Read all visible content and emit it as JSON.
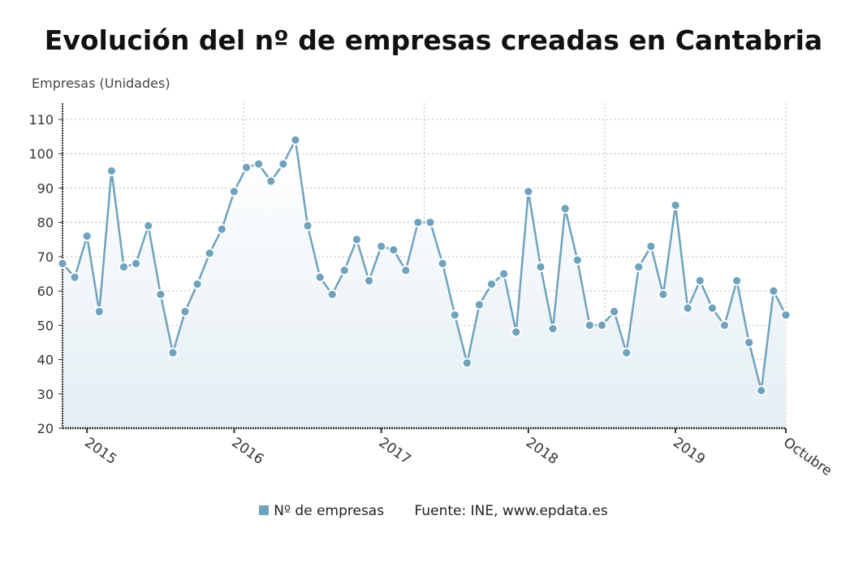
{
  "chart_data": {
    "type": "area",
    "title": "Evolución del nº de empresas creadas en Cantabria",
    "ylabel": "Empresas (Unidades)",
    "xlabel": "",
    "x_start": "2014-11",
    "x_end": "2019-10",
    "x_tick_labels": [
      "2015",
      "2016",
      "2017",
      "2018",
      "2019",
      "Octubre"
    ],
    "y_ticks": [
      20,
      30,
      40,
      50,
      60,
      70,
      80,
      90,
      100,
      110
    ],
    "ylim": [
      20,
      113
    ],
    "grid": true,
    "legend_position": "bottom",
    "series": [
      {
        "name": "Nº de empresas",
        "color": "#6fa3bd",
        "values": [
          68,
          64,
          76,
          54,
          95,
          67,
          68,
          79,
          59,
          42,
          54,
          62,
          71,
          78,
          89,
          96,
          97,
          92,
          97,
          104,
          79,
          64,
          59,
          66,
          75,
          63,
          73,
          72,
          66,
          80,
          80,
          68,
          53,
          39,
          56,
          62,
          65,
          48,
          89,
          67,
          49,
          84,
          69,
          50,
          50,
          54,
          42,
          67,
          73,
          59,
          85,
          55,
          63,
          55,
          50,
          63,
          45,
          31,
          60,
          53
        ]
      }
    ],
    "source": "Fuente: INE, www.epdata.es"
  }
}
